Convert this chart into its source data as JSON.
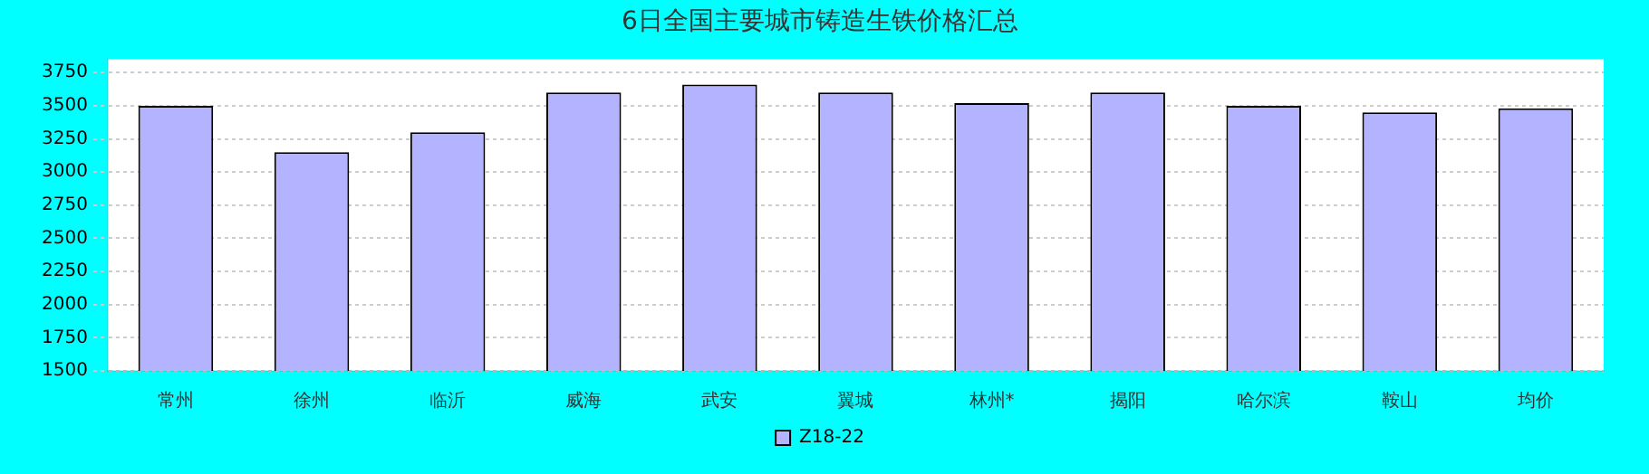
{
  "chart_data": {
    "type": "bar",
    "title": "6日全国主要城市铸造生铁价格汇总",
    "categories": [
      "常州",
      "徐州",
      "临沂",
      "威海",
      "武安",
      "翼城",
      "林州*",
      "揭阳",
      "哈尔滨",
      "鞍山",
      "均价"
    ],
    "series": [
      {
        "name": "Z18-22",
        "color": "#b3b3ff",
        "values": [
          3500,
          3150,
          3300,
          3600,
          3660,
          3600,
          3520,
          3600,
          3500,
          3450,
          3480
        ]
      }
    ],
    "ylim": [
      1500,
      3850
    ],
    "yticks": [
      1500,
      1750,
      2000,
      2250,
      2500,
      2750,
      3000,
      3250,
      3500,
      3750
    ],
    "grid": "y",
    "legend": "bottom"
  }
}
